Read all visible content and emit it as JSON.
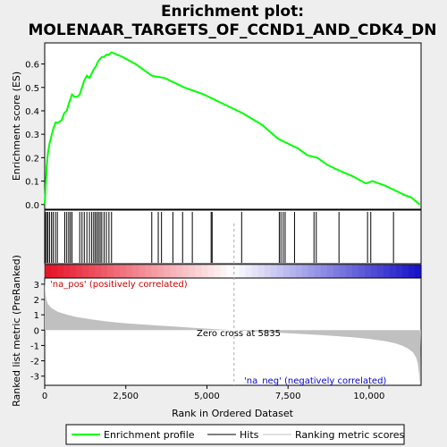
{
  "title_line1": "Enrichment plot:",
  "title_line2": "MOLENAAR_TARGETS_OF_CCND1_AND_CDK4_DN",
  "chart_data": {
    "type": "line",
    "top_panel": {
      "ylabel": "Enrichment score (ES)",
      "yticks": [
        "0.0",
        "0.1",
        "0.2",
        "0.3",
        "0.4",
        "0.5",
        "0.6"
      ],
      "ylim": [
        -0.02,
        0.69
      ],
      "xlim": [
        0,
        11600
      ],
      "series": [
        {
          "name": "Enrichment profile",
          "color": "#00ff00",
          "x": [
            0,
            30,
            60,
            100,
            150,
            200,
            260,
            330,
            420,
            520,
            600,
            680,
            740,
            790,
            840,
            920,
            1000,
            1080,
            1150,
            1220,
            1300,
            1380,
            1450,
            1520,
            1580,
            1640,
            1700,
            1760,
            1830,
            1900,
            1980,
            2060,
            2400,
            2800,
            3300,
            3700,
            4300,
            4900,
            5500,
            6100,
            6700,
            7200,
            7500,
            7800,
            8100,
            8400,
            8700,
            9000,
            9500,
            9900,
            10100,
            10500,
            10800,
            11100,
            11300,
            11560
          ],
          "y": [
            0.0,
            0.08,
            0.16,
            0.22,
            0.26,
            0.29,
            0.32,
            0.35,
            0.35,
            0.36,
            0.39,
            0.4,
            0.43,
            0.45,
            0.47,
            0.46,
            0.46,
            0.47,
            0.5,
            0.53,
            0.55,
            0.54,
            0.56,
            0.58,
            0.59,
            0.61,
            0.62,
            0.63,
            0.63,
            0.64,
            0.64,
            0.65,
            0.63,
            0.6,
            0.55,
            0.54,
            0.5,
            0.47,
            0.43,
            0.39,
            0.34,
            0.28,
            0.26,
            0.24,
            0.21,
            0.2,
            0.17,
            0.15,
            0.12,
            0.09,
            0.1,
            0.08,
            0.06,
            0.04,
            0.03,
            0.0
          ]
        }
      ]
    },
    "hits": [
      20,
      60,
      100,
      150,
      210,
      260,
      330,
      390,
      620,
      680,
      740,
      790,
      840,
      1080,
      1150,
      1220,
      1300,
      1380,
      1450,
      1510,
      1560,
      1610,
      1660,
      1710,
      1760,
      1830,
      1900,
      1980,
      2060,
      3300,
      3500,
      3600,
      3950,
      4250,
      4550,
      5130,
      5160,
      6070,
      7230,
      7280,
      7350,
      7410,
      7700,
      8300,
      8370,
      9070,
      9950,
      10050,
      10750
    ],
    "bottom_panel": {
      "ylabel": "Ranked list metric (PreRanked)",
      "xlabel": "Rank in Ordered Dataset",
      "yticks": [
        "-3",
        "-2",
        "-1",
        "0",
        "1",
        "2",
        "3"
      ],
      "ylim": [
        -3.6,
        3.4
      ],
      "xticks": [
        "0",
        "2,500",
        "5,000",
        "7,500",
        "10,000"
      ],
      "xtick_values": [
        0,
        2500,
        5000,
        7500,
        10000
      ],
      "metric_x": [
        0,
        20,
        50,
        100,
        200,
        400,
        700,
        1000,
        1500,
        2000,
        2500,
        3000,
        3500,
        4000,
        4500,
        5000,
        5500,
        5835,
        6500,
        7000,
        7500,
        8000,
        8500,
        9000,
        9500,
        10000,
        10500,
        10800,
        11000,
        11200,
        11350,
        11450,
        11500,
        11540,
        11560
      ],
      "metric_y": [
        3.4,
        2.5,
        2.0,
        1.7,
        1.45,
        1.2,
        1.0,
        0.85,
        0.68,
        0.55,
        0.45,
        0.37,
        0.3,
        0.23,
        0.16,
        0.1,
        0.04,
        0.0,
        -0.08,
        -0.14,
        -0.2,
        -0.26,
        -0.32,
        -0.39,
        -0.47,
        -0.57,
        -0.72,
        -0.86,
        -1.0,
        -1.2,
        -1.45,
        -1.8,
        -2.2,
        -2.9,
        -3.6
      ],
      "zero_cross_label": "Zero cross at 5835",
      "zero_cross": 5835,
      "pos_label": "'na_pos' (positively correlated)",
      "neg_label": "'na_neg' (negatively correlated)"
    }
  },
  "legend": {
    "items": [
      {
        "label": "Enrichment profile",
        "color": "#00ff00"
      },
      {
        "label": "Hits",
        "color": "#000000"
      },
      {
        "label": "Ranking metric scores",
        "color": "#c0c0c0"
      }
    ]
  },
  "colors": {
    "es_line": "#00ff00",
    "metric_fill": "#c0c0c0",
    "pos_label": "#cc0000",
    "neg_label": "#0000cc"
  }
}
